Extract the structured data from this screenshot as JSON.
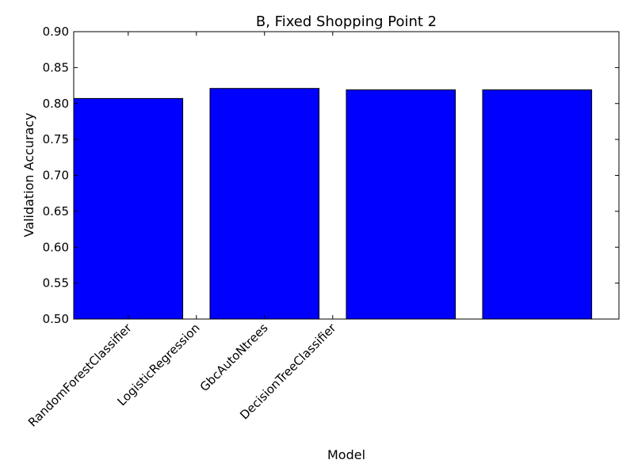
{
  "chart_data": {
    "type": "bar",
    "title": "B, Fixed Shopping Point 2",
    "xlabel": "Model",
    "ylabel": "Validation Accuracy",
    "ylim": [
      0.5,
      0.9
    ],
    "yticks": [
      "0.50",
      "0.55",
      "0.60",
      "0.65",
      "0.70",
      "0.75",
      "0.80",
      "0.85",
      "0.90"
    ],
    "categories": [
      "RandomForestClassifier",
      "LogisticRegression",
      "GbcAutoNtrees",
      "DecisionTreeClassifier"
    ],
    "values": [
      0.807,
      0.821,
      0.819,
      0.819
    ],
    "bar_color": "#0000ff",
    "grid": false
  }
}
